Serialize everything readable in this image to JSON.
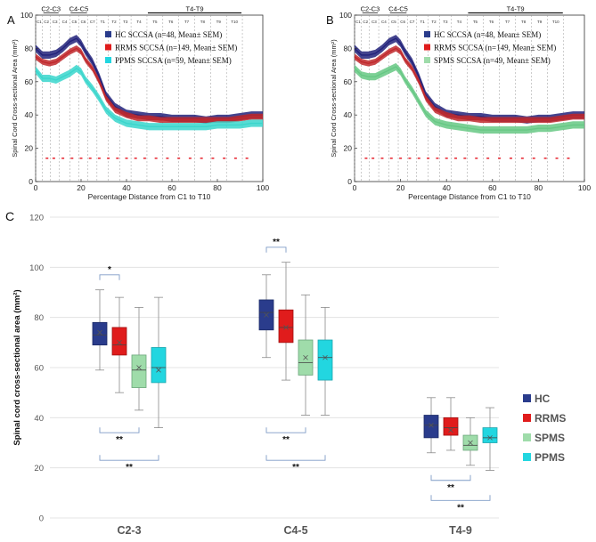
{
  "colors": {
    "hc": "#2a3c8c",
    "hc_line": "#22227a",
    "rrms": "#e01c1c",
    "rrms_line": "#c0282c",
    "spms": "#9fdcaa",
    "spms_line": "#66c884",
    "ppms": "#22d6e0",
    "ppms_line": "#3ad6cc",
    "marker": "#e8303a",
    "axis": "#333333",
    "bracket": "#7f9bc6",
    "grid": "#dddddd"
  },
  "chart_data": [
    {
      "id": "A",
      "type": "line",
      "panel_label": "A",
      "xlabel": "Percentage Distance from C1 to T10",
      "ylabel": "Spinal Cord Cross-sectional Area (mm²)",
      "xlim": [
        0,
        100
      ],
      "ylim": [
        0,
        100
      ],
      "x_ticks": [
        "0",
        "20",
        "40",
        "60",
        "80",
        "100"
      ],
      "y_ticks": [
        "0",
        "20",
        "40",
        "60",
        "80",
        "100"
      ],
      "region_labels": [
        "C2-C3",
        "C4-C5",
        "T4-T9"
      ],
      "vertebra_labels": [
        "C1",
        "C2",
        "C3",
        "C4",
        "C5",
        "C6",
        "C7",
        "T1",
        "T2",
        "T3",
        "T4",
        "T5",
        "T6",
        "T7",
        "T8",
        "T9",
        "T10"
      ],
      "vertebra_positions": [
        0,
        3,
        6.5,
        10.5,
        15,
        19,
        23,
        27,
        32,
        37,
        42,
        49,
        56,
        63,
        70,
        77,
        84,
        91
      ],
      "legend": [
        "HC SCCSA (n=48, Mean± SEM)",
        "RRMS SCCSA (n=149, Mean± SEM)",
        "PPMS SCCSA (n=59, Mean± SEM)"
      ],
      "series": [
        {
          "name": "HC",
          "color_key": "hc_line",
          "x": [
            0,
            3,
            6,
            9,
            12,
            15,
            18,
            20,
            22,
            25,
            28,
            31,
            35,
            40,
            45,
            50,
            55,
            60,
            65,
            70,
            75,
            80,
            85,
            90,
            95,
            100
          ],
          "y": [
            80,
            76,
            76,
            77,
            80,
            84,
            86,
            83,
            78,
            72,
            63,
            52,
            45,
            41,
            40,
            39,
            39,
            38,
            38,
            38,
            37,
            38,
            38,
            39,
            40,
            40
          ],
          "band": 2.2
        },
        {
          "name": "RRMS",
          "color_key": "rrms_line",
          "x": [
            0,
            3,
            6,
            9,
            12,
            15,
            18,
            20,
            22,
            25,
            28,
            31,
            35,
            40,
            45,
            50,
            55,
            60,
            65,
            70,
            75,
            80,
            85,
            90,
            95,
            100
          ],
          "y": [
            75,
            72,
            71,
            72,
            75,
            78,
            80,
            78,
            73,
            68,
            60,
            50,
            43,
            40,
            38,
            38,
            37,
            37,
            37,
            37,
            37,
            37,
            37,
            38,
            39,
            39
          ],
          "band": 1.8
        },
        {
          "name": "PPMS",
          "color_key": "ppms_line",
          "x": [
            0,
            3,
            6,
            9,
            12,
            15,
            18,
            20,
            22,
            25,
            28,
            31,
            35,
            40,
            45,
            50,
            55,
            60,
            65,
            70,
            75,
            80,
            85,
            90,
            95,
            100
          ],
          "y": [
            67,
            62,
            62,
            61,
            63,
            65,
            68,
            66,
            61,
            56,
            50,
            43,
            38,
            35,
            34,
            33,
            33,
            33,
            33,
            33,
            33,
            34,
            34,
            34,
            35,
            35
          ],
          "band": 2.2
        }
      ],
      "significance_markers_x": [
        5,
        8,
        12,
        16,
        20,
        24,
        28,
        32,
        36,
        40,
        44,
        48,
        53,
        58,
        63,
        68,
        73,
        78,
        83,
        88,
        93
      ],
      "significance_markers_y": 14
    },
    {
      "id": "B",
      "type": "line",
      "panel_label": "B",
      "xlabel": "Percentage Distance from C1 to T10",
      "ylabel": "Spinal Cord Cross-sectional Area (mm²)",
      "xlim": [
        0,
        100
      ],
      "ylim": [
        0,
        100
      ],
      "x_ticks": [
        "0",
        "20",
        "40",
        "60",
        "80",
        "100"
      ],
      "y_ticks": [
        "0",
        "20",
        "40",
        "60",
        "80",
        "100"
      ],
      "region_labels": [
        "C2-C3",
        "C4-C5",
        "T4-T9"
      ],
      "vertebra_labels": [
        "C1",
        "C2",
        "C3",
        "C4",
        "C5",
        "C6",
        "C7",
        "T1",
        "T2",
        "T3",
        "T4",
        "T5",
        "T6",
        "T7",
        "T8",
        "T9",
        "T10"
      ],
      "vertebra_positions": [
        0,
        3,
        6.5,
        10.5,
        15,
        19,
        23,
        27,
        32,
        37,
        42,
        49,
        56,
        63,
        70,
        77,
        84,
        91
      ],
      "legend": [
        "HC SCCSA (n=48, Mean± SEM)",
        "RRMS SCCSA (n=149, Mean± SEM)",
        "SPMS SCCSA (n=49, Mean± SEM)"
      ],
      "series": [
        {
          "name": "HC",
          "color_key": "hc_line",
          "x": [
            0,
            3,
            6,
            9,
            12,
            15,
            18,
            20,
            22,
            25,
            28,
            31,
            35,
            40,
            45,
            50,
            55,
            60,
            65,
            70,
            75,
            80,
            85,
            90,
            95,
            100
          ],
          "y": [
            80,
            76,
            76,
            77,
            80,
            84,
            86,
            83,
            78,
            72,
            63,
            52,
            45,
            41,
            40,
            39,
            39,
            38,
            38,
            38,
            37,
            38,
            38,
            39,
            40,
            40
          ],
          "band": 2.2
        },
        {
          "name": "RRMS",
          "color_key": "rrms_line",
          "x": [
            0,
            3,
            6,
            9,
            12,
            15,
            18,
            20,
            22,
            25,
            28,
            31,
            35,
            40,
            45,
            50,
            55,
            60,
            65,
            70,
            75,
            80,
            85,
            90,
            95,
            100
          ],
          "y": [
            75,
            72,
            71,
            72,
            75,
            78,
            80,
            78,
            73,
            68,
            60,
            50,
            43,
            40,
            38,
            38,
            37,
            37,
            37,
            37,
            37,
            37,
            37,
            38,
            39,
            39
          ],
          "band": 1.8
        },
        {
          "name": "SPMS",
          "color_key": "spms_line",
          "x": [
            0,
            3,
            6,
            9,
            12,
            15,
            18,
            20,
            22,
            25,
            28,
            31,
            35,
            40,
            45,
            50,
            55,
            60,
            65,
            70,
            75,
            80,
            85,
            90,
            95,
            100
          ],
          "y": [
            68,
            64,
            63,
            63,
            65,
            67,
            69,
            66,
            61,
            55,
            48,
            41,
            36,
            34,
            33,
            32,
            31,
            31,
            31,
            31,
            31,
            32,
            32,
            33,
            34,
            34
          ],
          "band": 2.2
        }
      ],
      "significance_markers_x": [
        5,
        8,
        12,
        16,
        20,
        24,
        28,
        32,
        36,
        40,
        44,
        48,
        53,
        58,
        63,
        68,
        73,
        78,
        83,
        88,
        93
      ],
      "significance_markers_y": 14
    },
    {
      "id": "C",
      "type": "box",
      "panel_label": "C",
      "ylabel": "Spinal cord cross-sectional area  (mm²)",
      "ylim": [
        0,
        120
      ],
      "y_ticks": [
        "0",
        "20",
        "40",
        "60",
        "80",
        "100",
        "120"
      ],
      "categories": [
        "C2-3",
        "C4-5",
        "T4-9"
      ],
      "legend": [
        "HC",
        "RRMS",
        "SPMS",
        "PPMS"
      ],
      "groups": [
        {
          "category": "C2-3",
          "boxes": [
            {
              "name": "HC",
              "color_key": "hc",
              "min": 59,
              "q1": 69,
              "median": 73,
              "q3": 78,
              "max": 91,
              "mean": 74
            },
            {
              "name": "RRMS",
              "color_key": "rrms",
              "min": 50,
              "q1": 65,
              "median": 69,
              "q3": 76,
              "max": 88,
              "mean": 70
            },
            {
              "name": "SPMS",
              "color_key": "spms",
              "min": 43,
              "q1": 52,
              "median": 59,
              "q3": 65,
              "max": 84,
              "mean": 60
            },
            {
              "name": "PPMS",
              "color_key": "ppms",
              "min": 36,
              "q1": 54,
              "median": 60,
              "q3": 68,
              "max": 88,
              "mean": 59
            }
          ]
        },
        {
          "category": "C4-5",
          "boxes": [
            {
              "name": "HC",
              "color_key": "hc",
              "min": 64,
              "q1": 75,
              "median": 82,
              "q3": 87,
              "max": 97,
              "mean": 81
            },
            {
              "name": "RRMS",
              "color_key": "rrms",
              "min": 55,
              "q1": 70,
              "median": 76,
              "q3": 83,
              "max": 102,
              "mean": 76
            },
            {
              "name": "SPMS",
              "color_key": "spms",
              "min": 41,
              "q1": 57,
              "median": 62,
              "q3": 71,
              "max": 89,
              "mean": 64
            },
            {
              "name": "PPMS",
              "color_key": "ppms",
              "min": 41,
              "q1": 55,
              "median": 64,
              "q3": 71,
              "max": 84,
              "mean": 64
            }
          ]
        },
        {
          "category": "T4-9",
          "boxes": [
            {
              "name": "HC",
              "color_key": "hc",
              "min": 26,
              "q1": 32,
              "median": 37,
              "q3": 41,
              "max": 48,
              "mean": 37
            },
            {
              "name": "RRMS",
              "color_key": "rrms",
              "min": 27,
              "q1": 33,
              "median": 36,
              "q3": 40,
              "max": 48,
              "mean": 35
            },
            {
              "name": "SPMS",
              "color_key": "spms",
              "min": 21,
              "q1": 27,
              "median": 29,
              "q3": 33,
              "max": 40,
              "mean": 30
            },
            {
              "name": "PPMS",
              "color_key": "ppms",
              "min": 19,
              "q1": 30,
              "median": 32,
              "q3": 36,
              "max": 44,
              "mean": 32
            }
          ]
        }
      ],
      "significance": [
        {
          "group": 0,
          "from": 0,
          "to": 1,
          "label": "*",
          "y": 97,
          "side": "above"
        },
        {
          "group": 0,
          "from": 0,
          "to": 2,
          "label": "**",
          "y": 34,
          "side": "below"
        },
        {
          "group": 0,
          "from": 0,
          "to": 3,
          "label": "**",
          "y": 23,
          "side": "below"
        },
        {
          "group": 1,
          "from": 0,
          "to": 1,
          "label": "**",
          "y": 108,
          "side": "above"
        },
        {
          "group": 1,
          "from": 0,
          "to": 2,
          "label": "**",
          "y": 34,
          "side": "below"
        },
        {
          "group": 1,
          "from": 0,
          "to": 3,
          "label": "**",
          "y": 23,
          "side": "below"
        },
        {
          "group": 2,
          "from": 0,
          "to": 2,
          "label": "**",
          "y": 15,
          "side": "below"
        },
        {
          "group": 2,
          "from": 0,
          "to": 3,
          "label": "**",
          "y": 7,
          "side": "below"
        }
      ]
    }
  ]
}
